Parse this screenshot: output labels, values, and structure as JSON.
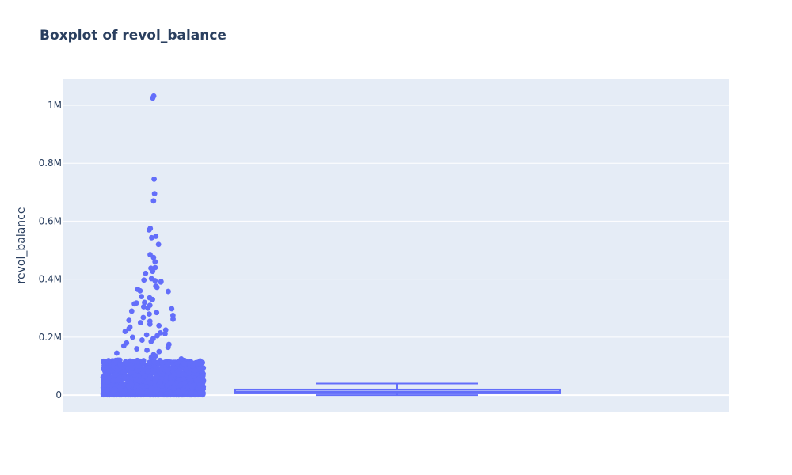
{
  "chart_data": {
    "type": "box",
    "title": "Boxplot of revol_balance",
    "xlabel": "",
    "ylabel": "revol_balance",
    "ylim": [
      -57000,
      1090000
    ],
    "y_ticks": [
      {
        "value": 0,
        "label": "0"
      },
      {
        "value": 200000,
        "label": "0.2M"
      },
      {
        "value": 400000,
        "label": "0.4M"
      },
      {
        "value": 600000,
        "label": "0.6M"
      },
      {
        "value": 800000,
        "label": "0.8M"
      },
      {
        "value": 1000000,
        "label": "1M"
      }
    ],
    "box": {
      "min": 0,
      "q1": 6000,
      "median": 11200,
      "q3": 19600,
      "upper_fence": 40000,
      "mean": 15800
    },
    "outliers_sample": [
      1032000,
      1025000,
      745000,
      695000,
      670000,
      575000,
      570000,
      548000,
      543000,
      520000,
      485000,
      475000,
      460000,
      440000,
      438000,
      427000,
      420000,
      402000,
      397000,
      395000,
      392000,
      390000,
      376000,
      372000,
      365000,
      360000,
      358000,
      340000,
      336000,
      330000,
      320000,
      318000,
      315000,
      310000,
      305000,
      300000,
      298000,
      290000,
      285000,
      280000,
      275000,
      268000,
      262000,
      258000,
      255000,
      250000,
      245000,
      240000,
      235000,
      230000,
      225000,
      220000,
      215000,
      212000,
      208000,
      205000,
      200000,
      195000,
      190000,
      185000,
      180000,
      175000,
      170000,
      165000,
      160000,
      155000,
      150000,
      145000,
      140000,
      135000,
      130000,
      125000,
      120000,
      115000,
      110000,
      105000,
      100000,
      95000,
      90000,
      85000,
      80000,
      75000,
      70000,
      65000,
      60000,
      55000,
      50000,
      45000,
      42000
    ],
    "colors": {
      "marker": "#636efa",
      "plot_bg": "#e5ecf6",
      "paper_bg": "#ffffff",
      "grid": "#ffffff",
      "text": "#2a3f5f"
    }
  }
}
